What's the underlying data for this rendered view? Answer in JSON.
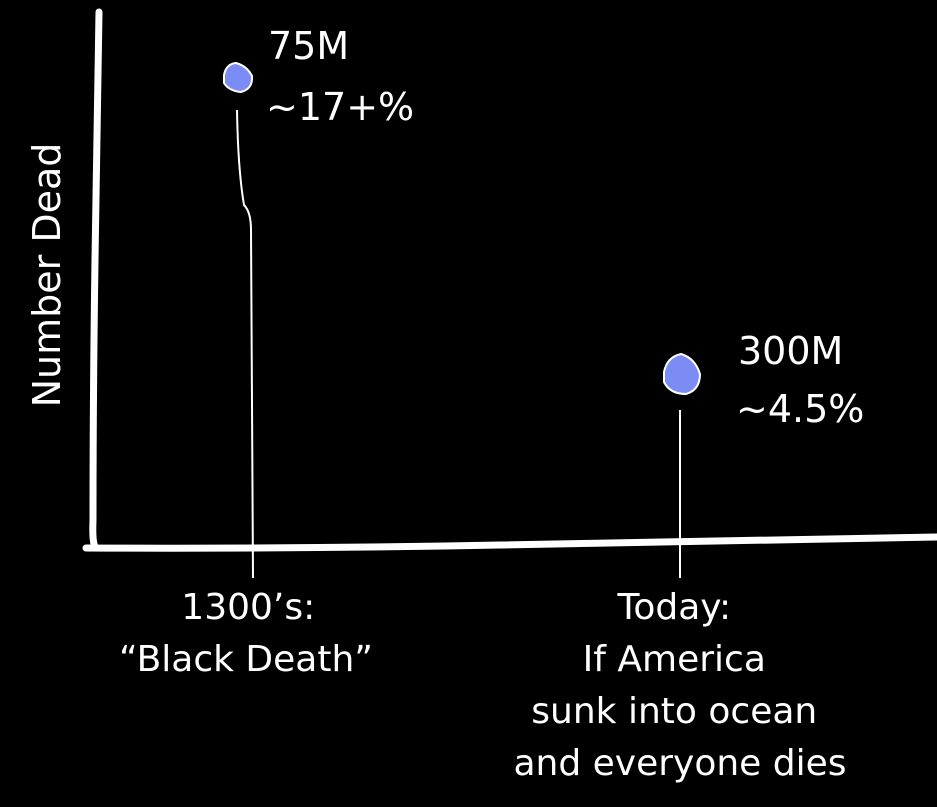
{
  "chart_data": {
    "type": "scatter",
    "ylabel": "Number Dead",
    "xlabel": "",
    "grid": false,
    "point_color": "#7b8cf5",
    "points": [
      {
        "category_lines": [
          "1300’s:",
          "“Black Death”"
        ],
        "deaths_millions": 75,
        "value_label": "75M",
        "percent_label": "~17+%"
      },
      {
        "category_lines": [
          "Today:",
          "If America",
          "sunk into ocean",
          "and everyone dies"
        ],
        "deaths_millions": 300,
        "value_label": "300M",
        "percent_label": "~4.5%"
      }
    ]
  }
}
